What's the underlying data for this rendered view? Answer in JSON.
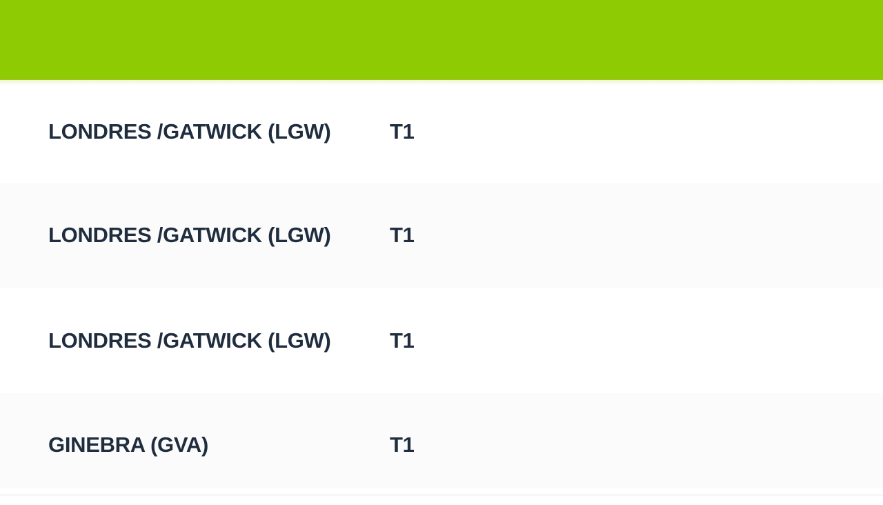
{
  "colors": {
    "header_green": "#8ecb02",
    "row_alt": "#fbfbfb",
    "text_navy": "#1f2d3e"
  },
  "board": {
    "rows": [
      {
        "destination": "LONDRES /GATWICK (LGW)",
        "terminal": "T1"
      },
      {
        "destination": "LONDRES /GATWICK (LGW)",
        "terminal": "T1"
      },
      {
        "destination": "LONDRES /GATWICK (LGW)",
        "terminal": "T1"
      },
      {
        "destination": "GINEBRA (GVA)",
        "terminal": "T1"
      }
    ]
  }
}
